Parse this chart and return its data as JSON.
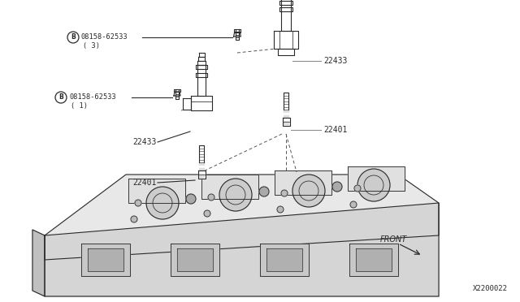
{
  "bg_color": "#ffffff",
  "line_color": "#2a2a2a",
  "diagram_number": "X2200022",
  "labels": {
    "bolt_label_top": "08158-62533",
    "bolt_sub_top": "( 3)",
    "bolt_label_mid": "08158-62533",
    "bolt_sub_mid": "( 1)",
    "coil_label": "22433",
    "spark_label": "22401",
    "front_label": "FRONT"
  },
  "fig_width": 6.4,
  "fig_height": 3.72,
  "dpi": 100
}
